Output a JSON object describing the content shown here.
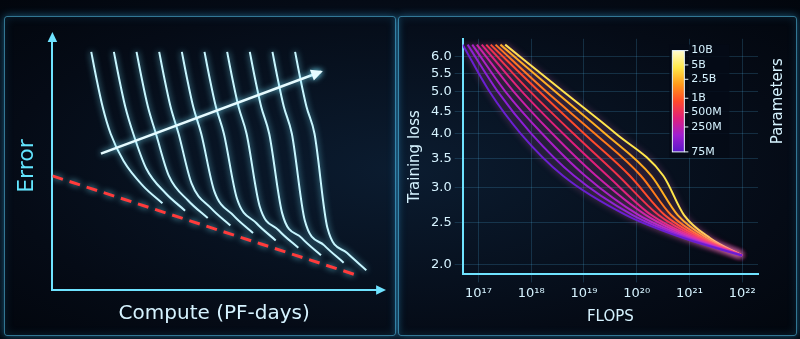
{
  "chart_data": [
    {
      "type": "line",
      "xlabel": "Compute (PF-days)",
      "ylabel": "Error",
      "xlim": [
        0,
        10
      ],
      "ylim": [
        0,
        10
      ],
      "tick_labels": false,
      "grid": false,
      "series": [
        {
          "color": "#c8f6ff",
          "x": [
            1.2,
            1.35,
            1.55,
            1.8,
            2.2,
            2.8,
            3.4
          ],
          "values": [
            9.6,
            8.6,
            7.4,
            6.3,
            5.2,
            4.2,
            3.5
          ]
        },
        {
          "color": "#c8f6ff",
          "x": [
            1.9,
            2.05,
            2.25,
            2.5,
            2.9,
            3.5,
            4.1
          ],
          "values": [
            9.6,
            8.6,
            7.4,
            6.3,
            4.9,
            3.9,
            3.2
          ]
        },
        {
          "color": "#c8f6ff",
          "x": [
            2.6,
            2.75,
            2.95,
            3.2,
            3.6,
            4.2,
            4.8
          ],
          "values": [
            9.6,
            8.6,
            7.4,
            6.3,
            4.6,
            3.6,
            2.9
          ]
        },
        {
          "color": "#c8f6ff",
          "x": [
            3.3,
            3.45,
            3.65,
            3.9,
            4.3,
            4.9,
            5.5
          ],
          "values": [
            9.6,
            8.6,
            7.4,
            6.3,
            4.3,
            3.3,
            2.6
          ]
        },
        {
          "color": "#c8f6ff",
          "x": [
            4.0,
            4.15,
            4.35,
            4.6,
            5.0,
            5.6,
            6.2
          ],
          "values": [
            9.6,
            8.6,
            7.4,
            6.3,
            4.0,
            3.0,
            2.3
          ]
        },
        {
          "color": "#c8f6ff",
          "x": [
            4.7,
            4.85,
            5.05,
            5.3,
            5.7,
            6.3,
            6.9
          ],
          "values": [
            9.6,
            8.6,
            7.4,
            6.3,
            3.7,
            2.7,
            2.0
          ]
        },
        {
          "color": "#c8f6ff",
          "x": [
            5.4,
            5.55,
            5.75,
            6.0,
            6.4,
            7.0,
            7.6
          ],
          "values": [
            9.6,
            8.6,
            7.4,
            6.3,
            3.4,
            2.4,
            1.7
          ]
        },
        {
          "color": "#c8f6ff",
          "x": [
            6.1,
            6.25,
            6.45,
            6.7,
            7.1,
            7.7,
            8.3
          ],
          "values": [
            9.6,
            8.6,
            7.4,
            6.3,
            3.1,
            2.1,
            1.4
          ]
        },
        {
          "color": "#c8f6ff",
          "x": [
            6.8,
            6.95,
            7.15,
            7.4,
            7.8,
            8.4,
            9.0
          ],
          "values": [
            9.6,
            8.6,
            7.4,
            6.3,
            2.8,
            1.8,
            1.1
          ]
        },
        {
          "color": "#c8f6ff",
          "x": [
            7.5,
            7.65,
            7.85,
            8.1,
            8.5,
            9.1,
            9.7
          ],
          "values": [
            9.6,
            8.6,
            7.4,
            6.3,
            2.5,
            1.5,
            0.8
          ]
        },
        {
          "color": "#ff3b3b",
          "line_style": "dashed",
          "x": [
            0,
            9.4
          ],
          "values": [
            4.6,
            0.6
          ]
        }
      ]
    },
    {
      "type": "line",
      "xlabel": "FLOPS",
      "ylabel": "Training loss",
      "log": true,
      "grid": true,
      "xlim": [
        5e+16,
        2e+22
      ],
      "ylim": [
        1.9,
        6.6
      ],
      "xticks": [
        {
          "value": 1e+17,
          "label": "10¹⁷"
        },
        {
          "value": 1e+18,
          "label": "10¹⁸"
        },
        {
          "value": 1e+19,
          "label": "10¹⁹"
        },
        {
          "value": 1e+20,
          "label": "10²⁰"
        },
        {
          "value": 1e+21,
          "label": "10²¹"
        },
        {
          "value": 1e+22,
          "label": "10²²"
        }
      ],
      "yticks": [
        {
          "value": 2,
          "label": "2.0"
        },
        2.5,
        {
          "value": 3,
          "label": "3.0"
        },
        3.5,
        {
          "value": 4,
          "label": "4.0"
        },
        4.5,
        {
          "value": 5,
          "label": "5.0"
        },
        5.5,
        {
          "value": 6,
          "label": "6.0"
        }
      ],
      "colorbar": {
        "label": "Parameters",
        "range": [
          75000000.0,
          10000000000.0
        ],
        "ticks": [
          {
            "value": 10000000000.0,
            "label": "10B"
          },
          {
            "value": 5000000000.0,
            "label": "5B"
          },
          {
            "value": 2500000000.0,
            "label": "2.5B"
          },
          {
            "value": 1000000000.0,
            "label": "1B"
          },
          {
            "value": 500000000.0,
            "label": "500M"
          },
          {
            "value": 250000000.0,
            "label": "250M"
          },
          {
            "value": 75000000.0,
            "label": "75M"
          }
        ],
        "colors": [
          "#5a18c8",
          "#a01fd0",
          "#e0207a",
          "#ff4a2a",
          "#ff9a1a",
          "#ffe84a",
          "#fffbd0"
        ]
      },
      "series": [
        {
          "color": "#6a1fd1",
          "x": [
            5e+16,
            1.6e+17,
            6.3e+17,
            4e+18,
            6.3e+19,
            7.9e+20,
            1e+22
          ],
          "values": [
            6.4,
            5.0,
            4.0,
            3.2,
            2.6,
            2.3,
            2.1
          ]
        },
        {
          "color": "#8a1fd6",
          "x": [
            6.2e+16,
            2.3e+17,
            1e+18,
            6.5e+18,
            8.4e+19,
            9e+20,
            1e+22
          ],
          "values": [
            6.4,
            5.0,
            4.0,
            3.2,
            2.6,
            2.3,
            2.1
          ]
        },
        {
          "color": "#a81fc8",
          "x": [
            7.6e+16,
            3.2e+17,
            1.6e+18,
            1.05e+19,
            1.1e+20,
            1.03e+21,
            1e+22
          ],
          "values": [
            6.4,
            5.0,
            4.0,
            3.2,
            2.6,
            2.3,
            2.1
          ]
        },
        {
          "color": "#c91fa8",
          "x": [
            9.3e+16,
            4.6e+17,
            2.5e+18,
            1.7e+19,
            1.5e+20,
            1.17e+21,
            1e+22
          ],
          "values": [
            6.4,
            5.0,
            4.0,
            3.2,
            2.6,
            2.3,
            2.1
          ]
        },
        {
          "color": "#e0207a",
          "x": [
            1.15e+17,
            6.6e+17,
            4e+18,
            2.8e+19,
            1.9e+20,
            1.33e+21,
            1e+22
          ],
          "values": [
            6.4,
            5.0,
            4.0,
            3.2,
            2.6,
            2.3,
            2.1
          ]
        },
        {
          "color": "#f0304a",
          "x": [
            1.4e+17,
            9.5e+17,
            6.3e+18,
            4.5e+19,
            2.6e+20,
            1.5e+21,
            1e+22
          ],
          "values": [
            6.4,
            5.0,
            4.0,
            3.2,
            2.6,
            2.3,
            2.1
          ]
        },
        {
          "color": "#ff4a2a",
          "x": [
            1.7e+17,
            1.4e+18,
            1e+19,
            7.4e+19,
            3.4e+20,
            1.7e+21,
            1e+22
          ],
          "values": [
            6.4,
            5.0,
            4.0,
            3.2,
            2.6,
            2.3,
            2.1
          ]
        },
        {
          "color": "#ff7a1a",
          "x": [
            2.1e+17,
            1.9e+18,
            1.6e+19,
            1.2e+20,
            4.5e+20,
            1.9e+21,
            1e+22
          ],
          "values": [
            6.4,
            5.0,
            4.0,
            3.2,
            2.6,
            2.3,
            2.1
          ]
        },
        {
          "color": "#ffb020",
          "x": [
            2.6e+17,
            2.8e+18,
            2.5e+19,
            1.9e+20,
            6e+20,
            2.2e+21,
            1e+22
          ],
          "values": [
            6.4,
            5.0,
            4.0,
            3.2,
            2.6,
            2.3,
            2.1
          ]
        },
        {
          "color": "#ffe84a",
          "x": [
            3.2e+17,
            4e+18,
            4e+19,
            3.2e+20,
            7.9e+20,
            2.5e+21,
            1e+22
          ],
          "values": [
            6.4,
            5.0,
            4.0,
            3.2,
            2.6,
            2.3,
            2.1
          ]
        }
      ]
    }
  ]
}
